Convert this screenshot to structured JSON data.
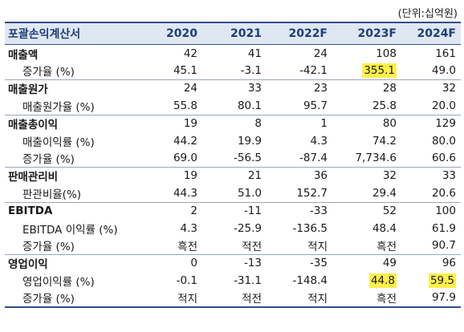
{
  "unit_label": "(단위:십억원)",
  "header": [
    "포괄손익계산서",
    "2020",
    "2021",
    "2022F",
    "2023F",
    "2024F"
  ],
  "highlight_color": "#fff04a",
  "rows": [
    {
      "type": "main",
      "label": "매출액",
      "values": [
        "42",
        "41",
        "24",
        "108",
        "161"
      ]
    },
    {
      "type": "sub",
      "label": "증가율 (%)",
      "values": [
        "45.1",
        "-3.1",
        "-42.1",
        "355.1",
        "49.0"
      ],
      "highlight": [
        3
      ]
    },
    {
      "type": "main",
      "label": "매출원가",
      "values": [
        "24",
        "33",
        "23",
        "28",
        "32"
      ]
    },
    {
      "type": "sub",
      "label": "매출원가율 (%)",
      "values": [
        "55.8",
        "80.1",
        "95.7",
        "25.8",
        "20.0"
      ]
    },
    {
      "type": "main",
      "label": "매출총이익",
      "values": [
        "19",
        "8",
        "1",
        "80",
        "129"
      ]
    },
    {
      "type": "sub",
      "label": "매출이익률 (%)",
      "values": [
        "44.2",
        "19.9",
        "4.3",
        "74.2",
        "80.0"
      ]
    },
    {
      "type": "sub",
      "label": "증가율 (%)",
      "values": [
        "69.0",
        "-56.5",
        "-87.4",
        "7,734.6",
        "60.6"
      ]
    },
    {
      "type": "main",
      "label": "판매관리비",
      "values": [
        "19",
        "21",
        "36",
        "32",
        "33"
      ]
    },
    {
      "type": "sub",
      "label": "판관비율(%)",
      "values": [
        "44.3",
        "51.0",
        "152.7",
        "29.4",
        "20.6"
      ]
    },
    {
      "type": "main",
      "label": "EBITDA",
      "values": [
        "2",
        "-11",
        "-33",
        "52",
        "100"
      ]
    },
    {
      "type": "sub",
      "label": "EBITDA 이익률 (%)",
      "values": [
        "4.3",
        "-25.9",
        "-136.5",
        "48.4",
        "61.9"
      ]
    },
    {
      "type": "sub",
      "label": "증가율 (%)",
      "values": [
        "흑전",
        "적전",
        "적지",
        "흑전",
        "90.7"
      ]
    },
    {
      "type": "main",
      "label": "영업이익",
      "values": [
        "0",
        "-13",
        "-35",
        "49",
        "96"
      ]
    },
    {
      "type": "sub",
      "label": "영업이익률 (%)",
      "values": [
        "-0.1",
        "-31.1",
        "-148.4",
        "44.8",
        "59.5"
      ],
      "highlight": [
        3,
        4
      ]
    },
    {
      "type": "sub",
      "label": "증가율 (%)",
      "values": [
        "적지",
        "적전",
        "적지",
        "흑전",
        "97.9"
      ]
    }
  ]
}
